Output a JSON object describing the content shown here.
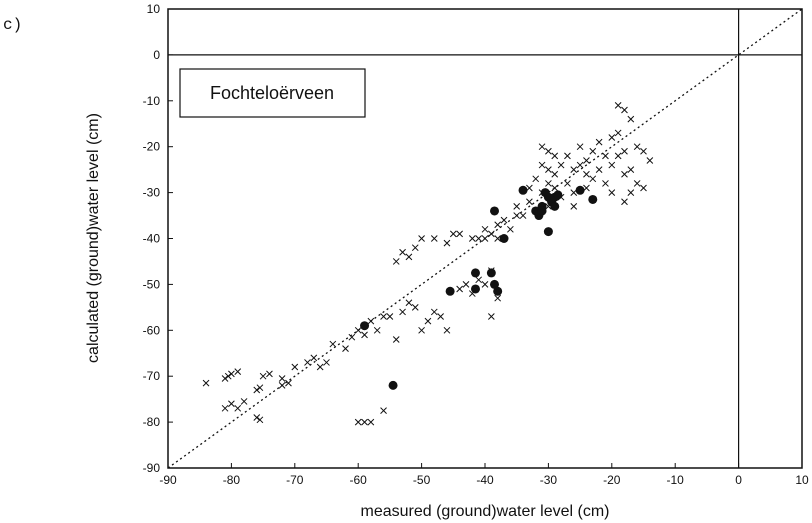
{
  "chart_data": {
    "type": "scatter",
    "panel_label": "c)",
    "annotation": "Fochteloërveen",
    "xlabel": "measured (ground)water level (cm)",
    "ylabel": "calculated (ground)water level (cm)",
    "xlim": [
      -90,
      10
    ],
    "ylim": [
      -90,
      10
    ],
    "x_ticks": [
      -90,
      -80,
      -70,
      -60,
      -50,
      -40,
      -30,
      -20,
      -10,
      0,
      10
    ],
    "y_ticks": [
      -90,
      -80,
      -70,
      -60,
      -50,
      -40,
      -30,
      -20,
      -10,
      0,
      10
    ],
    "reference_lines": {
      "x": 0,
      "y": 0
    },
    "diagonal": "1:1 dotted line",
    "grid": false,
    "series": [
      {
        "marker": "cross",
        "points": [
          [
            -84,
            -71.5
          ],
          [
            -81,
            -70.5
          ],
          [
            -80.5,
            -70
          ],
          [
            -80,
            -69.5
          ],
          [
            -79,
            -69
          ],
          [
            -81,
            -77
          ],
          [
            -80,
            -76
          ],
          [
            -79,
            -77
          ],
          [
            -78,
            -75.5
          ],
          [
            -76,
            -73
          ],
          [
            -75.5,
            -72.5
          ],
          [
            -75,
            -70
          ],
          [
            -74,
            -69.5
          ],
          [
            -76,
            -79
          ],
          [
            -75.5,
            -79.5
          ],
          [
            -72,
            -72
          ],
          [
            -71,
            -71.5
          ],
          [
            -72,
            -70.5
          ],
          [
            -70,
            -68
          ],
          [
            -68,
            -67
          ],
          [
            -67,
            -66
          ],
          [
            -66,
            -68
          ],
          [
            -65,
            -67
          ],
          [
            -64,
            -63
          ],
          [
            -62,
            -64
          ],
          [
            -61,
            -61.5
          ],
          [
            -60,
            -60
          ],
          [
            -59,
            -61
          ],
          [
            -58,
            -58
          ],
          [
            -57,
            -60
          ],
          [
            -56,
            -57
          ],
          [
            -55,
            -57
          ],
          [
            -54,
            -62
          ],
          [
            -53,
            -56
          ],
          [
            -52,
            -54
          ],
          [
            -51,
            -55
          ],
          [
            -50,
            -60
          ],
          [
            -49,
            -58
          ],
          [
            -48,
            -56
          ],
          [
            -47,
            -57
          ],
          [
            -46,
            -60
          ],
          [
            -44,
            -51
          ],
          [
            -43,
            -50
          ],
          [
            -42,
            -52
          ],
          [
            -41,
            -49
          ],
          [
            -40,
            -50
          ],
          [
            -39,
            -47
          ],
          [
            -39,
            -57
          ],
          [
            -38,
            -53
          ],
          [
            -60,
            -80
          ],
          [
            -59,
            -80
          ],
          [
            -58,
            -80
          ],
          [
            -56,
            -77.5
          ],
          [
            -54,
            -45
          ],
          [
            -53,
            -43
          ],
          [
            -52,
            -44
          ],
          [
            -51,
            -42
          ],
          [
            -50,
            -40
          ],
          [
            -48,
            -40
          ],
          [
            -46,
            -41
          ],
          [
            -45,
            -39
          ],
          [
            -44,
            -39
          ],
          [
            -42,
            -40
          ],
          [
            -41,
            -40
          ],
          [
            -40,
            -40
          ],
          [
            -40,
            -38
          ],
          [
            -39,
            -39
          ],
          [
            -38,
            -40
          ],
          [
            -38,
            -37
          ],
          [
            -37,
            -36
          ],
          [
            -36,
            -38
          ],
          [
            -35,
            -35
          ],
          [
            -35,
            -33
          ],
          [
            -34,
            -35
          ],
          [
            -33,
            -32
          ],
          [
            -33,
            -29
          ],
          [
            -32,
            -27
          ],
          [
            -32,
            -34
          ],
          [
            -31,
            -30
          ],
          [
            -31,
            -24
          ],
          [
            -30,
            -28
          ],
          [
            -30,
            -33
          ],
          [
            -30,
            -25
          ],
          [
            -29,
            -29
          ],
          [
            -29,
            -26
          ],
          [
            -28,
            -24
          ],
          [
            -28,
            -31
          ],
          [
            -27,
            -22
          ],
          [
            -27,
            -28
          ],
          [
            -26,
            -25
          ],
          [
            -26,
            -30
          ],
          [
            -26,
            -33
          ],
          [
            -25,
            -24
          ],
          [
            -25,
            -20
          ],
          [
            -24,
            -26
          ],
          [
            -24,
            -29
          ],
          [
            -24,
            -23
          ],
          [
            -23,
            -21
          ],
          [
            -23,
            -27
          ],
          [
            -22,
            -19
          ],
          [
            -22,
            -25
          ],
          [
            -21,
            -22
          ],
          [
            -21,
            -28
          ],
          [
            -20,
            -18
          ],
          [
            -20,
            -24
          ],
          [
            -20,
            -30
          ],
          [
            -19,
            -17
          ],
          [
            -19,
            -22
          ],
          [
            -19,
            -11
          ],
          [
            -18,
            -12
          ],
          [
            -18,
            -21
          ],
          [
            -18,
            -26
          ],
          [
            -17,
            -14
          ],
          [
            -17,
            -25
          ],
          [
            -16,
            -20
          ],
          [
            -16,
            -28
          ],
          [
            -15,
            -29
          ],
          [
            -15,
            -21
          ],
          [
            -17,
            -30
          ],
          [
            -18,
            -32
          ],
          [
            -14,
            -23
          ],
          [
            -30,
            -21
          ],
          [
            -29,
            -22
          ],
          [
            -31,
            -20
          ]
        ]
      },
      {
        "marker": "dot",
        "points": [
          [
            -59,
            -59
          ],
          [
            -54.5,
            -72
          ],
          [
            -45.5,
            -51.5
          ],
          [
            -41.5,
            -47.5
          ],
          [
            -41.5,
            -51
          ],
          [
            -39,
            -47.5
          ],
          [
            -38.5,
            -50
          ],
          [
            -38,
            -51.5
          ],
          [
            -38.5,
            -34
          ],
          [
            -37,
            -40
          ],
          [
            -34,
            -29.5
          ],
          [
            -31,
            -33
          ],
          [
            -30.5,
            -30
          ],
          [
            -30,
            -31
          ],
          [
            -29.5,
            -32
          ],
          [
            -29,
            -31
          ],
          [
            -28.5,
            -30.5
          ],
          [
            -31.5,
            -35
          ],
          [
            -32,
            -34
          ],
          [
            -30,
            -38.5
          ],
          [
            -25,
            -29.5
          ],
          [
            -23,
            -31.5
          ],
          [
            -31,
            -34
          ],
          [
            -29,
            -33
          ]
        ]
      }
    ]
  }
}
